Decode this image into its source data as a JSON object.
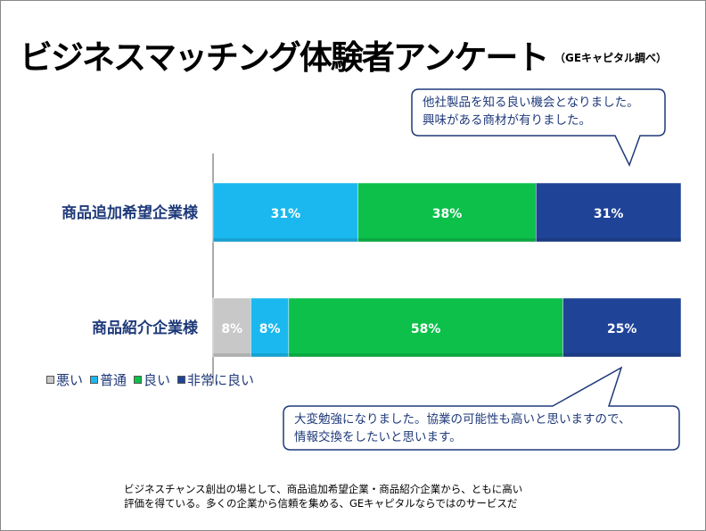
{
  "title": "ビジネスマッチング体験者アンケート",
  "source": "（GEキャピタル調べ）",
  "chart_data": {
    "type": "bar",
    "orientation": "horizontal-stacked-100",
    "categories": [
      "商品追加希望企業様",
      "商品紹介企業様"
    ],
    "series": [
      {
        "name": "悪い",
        "color": "#c8c8c8",
        "values": [
          0,
          8
        ]
      },
      {
        "name": "普通",
        "color": "#1ab8ee",
        "values": [
          31,
          8
        ]
      },
      {
        "name": "良い",
        "color": "#0cc04a",
        "values": [
          38,
          58
        ]
      },
      {
        "name": "非常に良い",
        "color": "#1f4396",
        "values": [
          31,
          25
        ]
      }
    ],
    "labels": [
      [
        "",
        "31%",
        "38%",
        "31%"
      ],
      [
        "8%",
        "8%",
        "58%",
        "25%"
      ]
    ],
    "legend_position": "bottom-left"
  },
  "callouts": {
    "top": [
      "他社製品を知る良い機会となりました。",
      "興味がある商材が有りました。"
    ],
    "bottom": [
      "大変勉強になりました。協業の可能性も高いと思いますので、",
      "情報交換をしたいと思います。"
    ]
  },
  "summary": [
    "ビジネスチャンス創出の場として、商品追加希望企業・商品紹介企業から、ともに高い",
    "評価を得ている。多くの企業から信頼を集める、GEキャピタルならではのサービスだ"
  ]
}
